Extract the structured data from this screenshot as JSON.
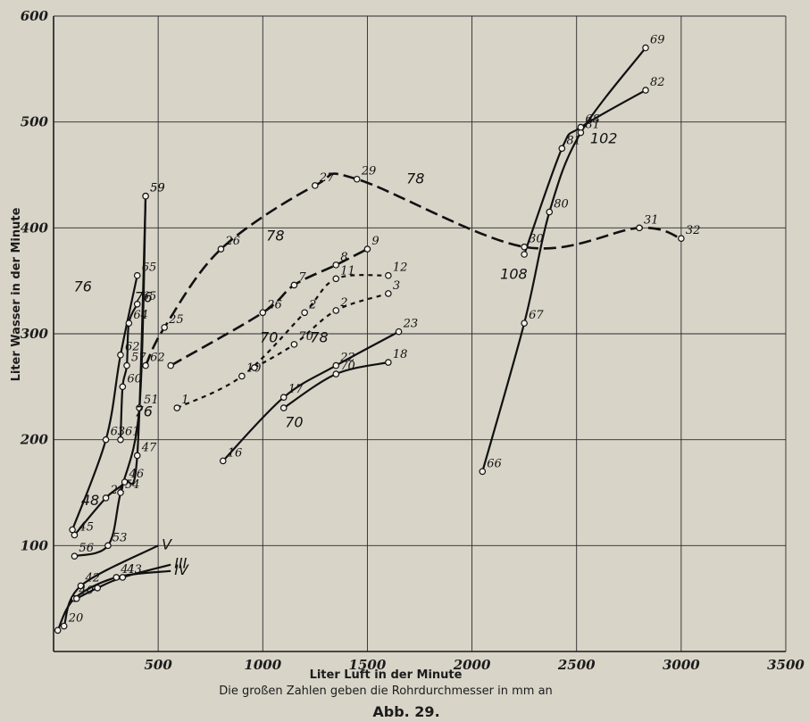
{
  "chart_data": {
    "type": "line",
    "xlabel": "Liter Luft in der Minute",
    "ylabel": "Liter Wasser in der Minute",
    "caption": "Die großen Zahlen geben die Rohrdurchmesser in mm an",
    "figure_label": "Abb. 29.",
    "xlim": [
      0,
      3500
    ],
    "ylim": [
      0,
      600
    ],
    "xticks": [
      500,
      1000,
      1500,
      2000,
      2500,
      3000,
      3500
    ],
    "yticks": [
      100,
      200,
      300,
      400,
      500,
      600
    ],
    "xtick_labels": [
      "500",
      "1000",
      "1500",
      "2000",
      "2500",
      "3000",
      "3500"
    ],
    "ytick_labels": [
      "100",
      "200",
      "300",
      "400",
      "500",
      "600"
    ],
    "grid": true,
    "series": [
      {
        "style": "solid",
        "points": [
          [
            50,
            24
          ],
          [
            130,
            62
          ],
          [
            500,
            100
          ]
        ],
        "labels": [
          "20",
          "42",
          "V"
        ]
      },
      {
        "style": "solid",
        "points": [
          [
            20,
            20
          ],
          [
            100,
            50
          ],
          [
            300,
            70
          ],
          [
            560,
            76
          ]
        ],
        "labels": [
          "",
          "40",
          "41",
          "IV"
        ]
      },
      {
        "style": "solid",
        "points": [
          [
            110,
            50
          ],
          [
            210,
            60
          ],
          [
            330,
            70
          ],
          [
            560,
            82
          ]
        ],
        "labels": [
          "",
          "",
          "43",
          "III"
        ]
      },
      {
        "style": "solid",
        "points": [
          [
            100,
            110
          ],
          [
            250,
            145
          ],
          [
            340,
            160
          ],
          [
            400,
            185
          ],
          [
            440,
            430
          ]
        ],
        "labels": [
          "45",
          "24",
          "46",
          "47",
          "59"
        ]
      },
      {
        "style": "solid",
        "points": [
          [
            100,
            90
          ],
          [
            260,
            100
          ],
          [
            320,
            150
          ],
          [
            410,
            230
          ],
          [
            440,
            430
          ]
        ],
        "labels": [
          "56",
          "53",
          "54",
          "51",
          "59"
        ]
      },
      {
        "style": "solid",
        "points": [
          [
            90,
            115
          ],
          [
            250,
            200
          ],
          [
            320,
            280
          ],
          [
            400,
            355
          ]
        ],
        "labels": [
          "",
          "63",
          "62",
          "65"
        ]
      },
      {
        "style": "solid",
        "points": [
          [
            320,
            200
          ],
          [
            330,
            250
          ],
          [
            350,
            270
          ],
          [
            360,
            310
          ],
          [
            400,
            328
          ]
        ],
        "labels": [
          "61",
          "60",
          "57",
          "64",
          "65"
        ]
      },
      {
        "style": "dashed",
        "points": [
          [
            440,
            270
          ],
          [
            530,
            306
          ],
          [
            800,
            380
          ],
          [
            1250,
            440
          ],
          [
            1450,
            446
          ],
          [
            2250,
            382
          ],
          [
            2800,
            400
          ],
          [
            3000,
            390
          ]
        ],
        "labels": [
          "62",
          "25",
          "26",
          "27",
          "29",
          "30",
          "31",
          "32"
        ]
      },
      {
        "style": "dashed",
        "points": [
          [
            560,
            270
          ],
          [
            1000,
            320
          ],
          [
            1150,
            346
          ],
          [
            1350,
            365
          ],
          [
            1500,
            380
          ]
        ],
        "labels": [
          "",
          "26",
          "7",
          "8",
          "9"
        ]
      },
      {
        "style": "dotted",
        "points": [
          [
            590,
            230
          ],
          [
            900,
            260
          ],
          [
            1200,
            320
          ],
          [
            1350,
            352
          ],
          [
            1600,
            355
          ]
        ],
        "labels": [
          "1",
          "10",
          "2",
          "11",
          "12"
        ]
      },
      {
        "style": "dotted",
        "points": [
          [
            960,
            268
          ],
          [
            1150,
            290
          ],
          [
            1350,
            322
          ],
          [
            1600,
            338
          ]
        ],
        "labels": [
          "",
          "70",
          "2",
          "3"
        ]
      },
      {
        "style": "solid",
        "points": [
          [
            810,
            180
          ],
          [
            1100,
            240
          ],
          [
            1350,
            270
          ],
          [
            1650,
            302
          ]
        ],
        "labels": [
          "16",
          "17",
          "22",
          "23"
        ]
      },
      {
        "style": "solid",
        "points": [
          [
            1100,
            230
          ],
          [
            1350,
            262
          ],
          [
            1600,
            273
          ]
        ],
        "labels": [
          "",
          "70",
          "18"
        ]
      },
      {
        "style": "solid",
        "points": [
          [
            2050,
            170
          ],
          [
            2250,
            310
          ],
          [
            2370,
            415
          ],
          [
            2520,
            490
          ],
          [
            2830,
            570
          ]
        ],
        "labels": [
          "66",
          "67",
          "80",
          "81",
          "69"
        ]
      },
      {
        "style": "solid",
        "points": [
          [
            2250,
            375
          ],
          [
            2430,
            475
          ],
          [
            2520,
            495
          ],
          [
            2830,
            530
          ]
        ],
        "labels": [
          "",
          "81",
          "68",
          "82"
        ]
      }
    ],
    "diameter_labels": [
      {
        "text": "76",
        "at": [
          140,
          340
        ]
      },
      {
        "text": "76",
        "at": [
          430,
          330
        ]
      },
      {
        "text": "76",
        "at": [
          430,
          222
        ]
      },
      {
        "text": "48",
        "at": [
          175,
          138
        ]
      },
      {
        "text": "78",
        "at": [
          1060,
          388
        ]
      },
      {
        "text": "70",
        "at": [
          1030,
          292
        ]
      },
      {
        "text": "78",
        "at": [
          1270,
          292
        ]
      },
      {
        "text": "70",
        "at": [
          1150,
          212
        ]
      },
      {
        "text": "78",
        "at": [
          1730,
          442
        ]
      },
      {
        "text": "108",
        "at": [
          2200,
          352
        ]
      },
      {
        "text": "102",
        "at": [
          2630,
          480
        ]
      }
    ]
  }
}
